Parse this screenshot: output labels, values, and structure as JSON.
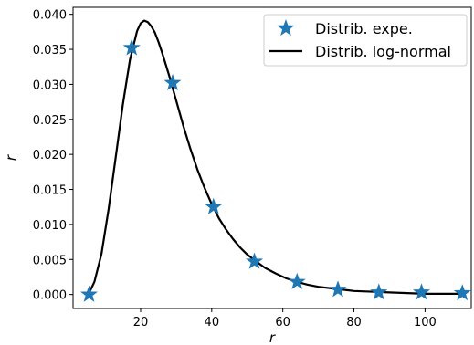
{
  "chart_data": {
    "type": "line",
    "xlabel": "r",
    "ylabel": "r",
    "xlim": [
      1,
      113
    ],
    "ylim": [
      -0.002,
      0.041
    ],
    "xticks": [
      20,
      40,
      60,
      80,
      100
    ],
    "xtick_labels": [
      "20",
      "40",
      "60",
      "80",
      "100"
    ],
    "yticks": [
      0.0,
      0.005,
      0.01,
      0.015,
      0.02,
      0.025,
      0.03,
      0.035,
      0.04
    ],
    "ytick_labels": [
      "0.000",
      "0.005",
      "0.010",
      "0.015",
      "0.020",
      "0.025",
      "0.030",
      "0.035",
      "0.040"
    ],
    "grid": false,
    "legend_position": "top-right",
    "series": [
      {
        "name": "Distrib. expe.",
        "kind": "scatter",
        "marker": "star",
        "color": "#1f77b4",
        "x": [
          5.5,
          17.5,
          29,
          40.5,
          52,
          64,
          75.5,
          87,
          99,
          110.5
        ],
        "y": [
          0.0,
          0.0352,
          0.0302,
          0.0125,
          0.0047,
          0.0018,
          0.0007,
          0.0003,
          0.0003,
          0.0002
        ]
      },
      {
        "name": "Distrib. log-normal",
        "kind": "line",
        "color": "#000000",
        "x": [
          5.5,
          7,
          9,
          11,
          13,
          15,
          17,
          19,
          20,
          21,
          22,
          23,
          24,
          25,
          26,
          28,
          30,
          32,
          34,
          36,
          38,
          40,
          42,
          44,
          46,
          48,
          50,
          52,
          55,
          58,
          61,
          64,
          67,
          70,
          75,
          80,
          85,
          90,
          95,
          100,
          105,
          110.5
        ],
        "y": [
          0.0002,
          0.0018,
          0.0058,
          0.0122,
          0.0196,
          0.0271,
          0.0335,
          0.0376,
          0.0387,
          0.0391,
          0.0389,
          0.0383,
          0.0374,
          0.0361,
          0.0346,
          0.0313,
          0.0277,
          0.0241,
          0.0208,
          0.0178,
          0.0152,
          0.0129,
          0.0109,
          0.0093,
          0.0079,
          0.0067,
          0.0057,
          0.0049,
          0.0038,
          0.003,
          0.0023,
          0.0018,
          0.0014,
          0.0011,
          0.0008,
          0.0005,
          0.0004,
          0.0003,
          0.0002,
          0.0001,
          0.0001,
          0.0001
        ]
      }
    ]
  }
}
